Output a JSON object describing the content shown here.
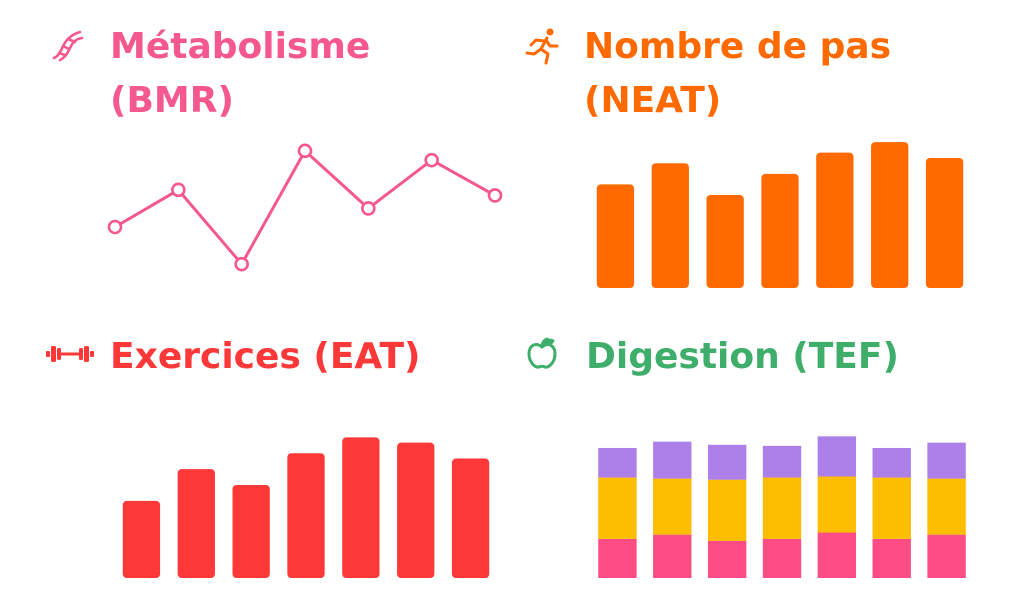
{
  "colors": {
    "bmr": "#f4588e",
    "neat": "#fe6a00",
    "eat": "#fd3838",
    "tef": "#3fae6a",
    "tef_top": "#ad7fe9",
    "tef_mid": "#fdbd00",
    "tef_bottom": "#fe4c84"
  },
  "panels": {
    "bmr": {
      "title_line1": "Métabolisme",
      "title_line2": "(BMR)",
      "icon": "dna-icon"
    },
    "neat": {
      "title_line1": "Nombre de pas",
      "title_line2": "(NEAT)",
      "icon": "running-figure-icon"
    },
    "eat": {
      "title": "Exercices (EAT)",
      "icon": "dumbbell-icon"
    },
    "tef": {
      "title": "Digestion (TEF)",
      "icon": "apple-icon"
    }
  },
  "chart_data": [
    {
      "type": "line",
      "x": [
        1,
        2,
        3,
        4,
        5,
        6,
        7
      ],
      "series": [
        {
          "values": [
            2.1,
            4.1,
            0.1,
            6.2,
            3.1,
            5.7,
            3.8
          ]
        }
      ],
      "ylim": [
        0,
        7
      ],
      "grid": false,
      "axes": false
    },
    {
      "type": "bar",
      "categories": [
        "1",
        "2",
        "3",
        "4",
        "5",
        "6",
        "7"
      ],
      "values": [
        98,
        118,
        88,
        108,
        128,
        138,
        123
      ],
      "ylim": [
        0,
        140
      ],
      "grid": false,
      "axes": false
    },
    {
      "type": "bar",
      "categories": [
        "1",
        "2",
        "3",
        "4",
        "5",
        "6",
        "7"
      ],
      "values": [
        73,
        103,
        88,
        118,
        133,
        128,
        113
      ],
      "ylim": [
        0,
        140
      ],
      "grid": false,
      "axes": false
    },
    {
      "type": "bar",
      "stacked": true,
      "categories": [
        "1",
        "2",
        "3",
        "4",
        "5",
        "6",
        "7"
      ],
      "series": [
        {
          "values": [
            37,
            41,
            35,
            37,
            43,
            37,
            41
          ]
        },
        {
          "values": [
            58,
            53,
            58,
            58,
            53,
            58,
            53
          ]
        },
        {
          "values": [
            28,
            35,
            33,
            30,
            38,
            28,
            34
          ]
        }
      ],
      "ylim": [
        0,
        140
      ],
      "grid": false,
      "axes": false
    }
  ]
}
